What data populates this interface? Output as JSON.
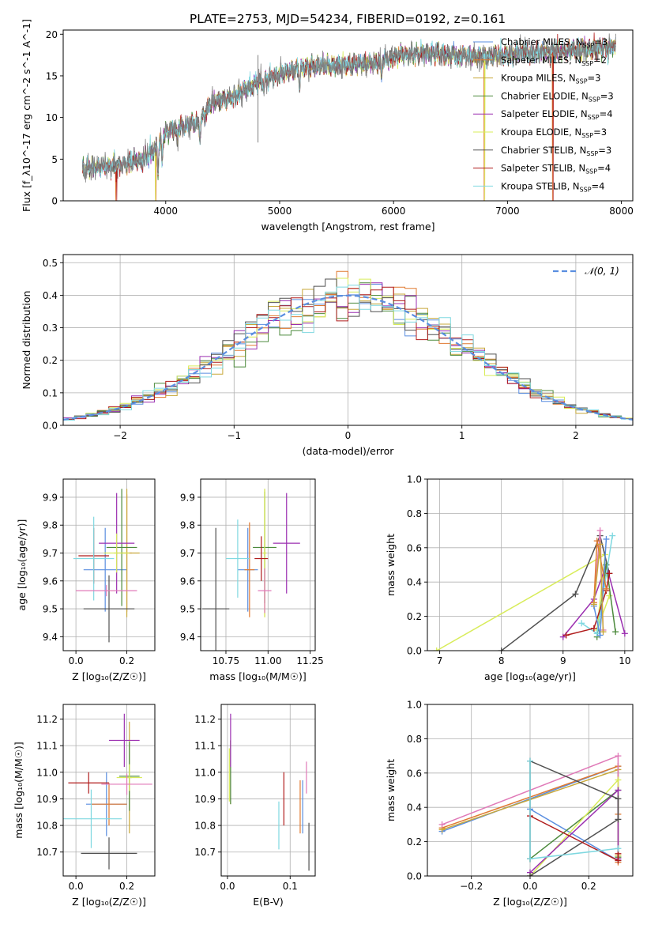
{
  "figure": {
    "title": "PLATE=2753, MJD=54234, FIBERID=0192, z=0.161"
  },
  "colors": {
    "chabrier_miles": "#5a8ee0",
    "salpeter_miles": "#e07a30",
    "kroupa_miles": "#c8a83a",
    "chabrier_elodie": "#4c8a3c",
    "salpeter_elodie": "#9b2fb0",
    "kroupa_elodie": "#d8ec5a",
    "chabrier_stelib": "#505050",
    "salpeter_stelib": "#b01c1c",
    "kroupa_stelib": "#7fd8e0",
    "pink": "#e07ab8",
    "gaussian": "#5a8ee0",
    "data": "#808080"
  },
  "legend": {
    "items": [
      {
        "label": "Chabrier MILES, N",
        "sub": "SSP",
        "suffix": "=3",
        "color": "#5a8ee0"
      },
      {
        "label": "Salpeter MILES, N",
        "sub": "SSP",
        "suffix": "=2",
        "color": "#e07a30"
      },
      {
        "label": "Kroupa MILES, N",
        "sub": "SSP",
        "suffix": "=3",
        "color": "#c8a83a"
      },
      {
        "label": "Chabrier ELODIE, N",
        "sub": "SSP",
        "suffix": "=3",
        "color": "#4c8a3c"
      },
      {
        "label": "Salpeter ELODIE, N",
        "sub": "SSP",
        "suffix": "=4",
        "color": "#9b2fb0"
      },
      {
        "label": "Kroupa ELODIE, N",
        "sub": "SSP",
        "suffix": "=3",
        "color": "#d8ec5a"
      },
      {
        "label": "Chabrier STELIB, N",
        "sub": "SSP",
        "suffix": "=3",
        "color": "#505050"
      },
      {
        "label": "Salpeter STELIB, N",
        "sub": "SSP",
        "suffix": "=4",
        "color": "#b01c1c"
      },
      {
        "label": "Kroupa STELIB, N",
        "sub": "SSP",
        "suffix": "=4",
        "color": "#7fd8e0"
      }
    ]
  },
  "chart_data": [
    {
      "id": "spectrum",
      "type": "line",
      "xlabel": "wavelength [Angstrom, rest frame]",
      "ylabel": "Flux [f_λ10^-17 erg cm^-2 s^-1 A^-1]",
      "xlim": [
        3100,
        8100
      ],
      "ylim": [
        0,
        20.5
      ],
      "xticks": [
        4000,
        5000,
        6000,
        7000,
        8000
      ],
      "yticks": [
        0,
        5,
        10,
        15,
        20
      ],
      "x_start": 3270,
      "x_end": 7950,
      "knots": [
        [
          3270,
          3.8
        ],
        [
          3400,
          4.0
        ],
        [
          3600,
          4.3
        ],
        [
          3800,
          5.0
        ],
        [
          3900,
          6.2
        ],
        [
          4000,
          8.2
        ],
        [
          4100,
          8.8
        ],
        [
          4300,
          9.5
        ],
        [
          4400,
          11.8
        ],
        [
          4600,
          12.5
        ],
        [
          4800,
          14.2
        ],
        [
          5000,
          15.3
        ],
        [
          5200,
          16.0
        ],
        [
          5400,
          16.2
        ],
        [
          5600,
          16.3
        ],
        [
          5850,
          16.6
        ],
        [
          6050,
          17.5
        ],
        [
          6300,
          17.8
        ],
        [
          6500,
          17.6
        ],
        [
          6800,
          17.3
        ],
        [
          7000,
          17.6
        ],
        [
          7200,
          17.8
        ],
        [
          7500,
          18.0
        ],
        [
          7800,
          18.3
        ],
        [
          7950,
          18.5
        ]
      ],
      "absorption": [
        [
          3933,
          3.0
        ],
        [
          3968,
          2.5
        ],
        [
          4101,
          1.5
        ],
        [
          4300,
          1.8
        ],
        [
          4861,
          1.2
        ],
        [
          5175,
          2.0
        ],
        [
          5893,
          1.5
        ],
        [
          6563,
          1.0
        ]
      ],
      "model_drops": [
        [
          3560,
          "#e07a30"
        ],
        [
          3570,
          "#b01c1c"
        ],
        [
          3910,
          "#d8ec5a"
        ],
        [
          3915,
          "#e07a30"
        ],
        [
          6795,
          "#e07a30"
        ],
        [
          6800,
          "#d8ec5a"
        ],
        [
          7395,
          "#e07a30"
        ],
        [
          7400,
          "#b01c1c"
        ]
      ],
      "spike": [
        4810,
        7.0,
        17.5
      ]
    },
    {
      "id": "residuals",
      "type": "step",
      "xlabel": "(data-model)/error",
      "ylabel": "Normed distribution",
      "xlim": [
        -2.5,
        2.5
      ],
      "ylim": [
        0,
        0.525
      ],
      "xticks": [
        -2,
        -1,
        0,
        1,
        2
      ],
      "yticks": [
        0,
        0.1,
        0.2,
        0.3,
        0.4,
        0.5
      ],
      "bin_width": 0.1,
      "series_colors": [
        "#5a8ee0",
        "#e07a30",
        "#c8a83a",
        "#4c8a3c",
        "#9b2fb0",
        "#d8ec5a",
        "#505050",
        "#b01c1c",
        "#7fd8e0"
      ],
      "gaussian_label": "𝒩(0, 1)"
    },
    {
      "id": "age_vs_Z",
      "type": "scatter",
      "xlabel": "Z [log₁₀(Z/Z☉)]",
      "ylabel": "age  [log₁₀(age/yr)]",
      "xlim": [
        -0.05,
        0.31
      ],
      "ylim": [
        9.35,
        9.965
      ],
      "xticks": [
        0.0,
        0.2
      ],
      "yticks": [
        9.4,
        9.5,
        9.6,
        9.7,
        9.8,
        9.9
      ],
      "points": [
        {
          "x": 0.115,
          "y": 9.64,
          "ex": 0.085,
          "ey": 0.15,
          "color": "#5a8ee0"
        },
        {
          "x": 0.2,
          "y": 9.7,
          "ex": 0.02,
          "ey": 0.21,
          "color": "#e07a30"
        },
        {
          "x": 0.2,
          "y": 9.7,
          "ex": 0.05,
          "ey": 0.23,
          "color": "#c8a83a"
        },
        {
          "x": 0.18,
          "y": 9.72,
          "ex": 0.06,
          "ey": 0.21,
          "color": "#4c8a3c"
        },
        {
          "x": 0.16,
          "y": 9.735,
          "ex": 0.07,
          "ey": 0.18,
          "color": "#9b2fb0"
        },
        {
          "x": 0.16,
          "y": 9.7,
          "ex": 0.05,
          "ey": 0.07,
          "color": "#d8ec5a"
        },
        {
          "x": 0.13,
          "y": 9.5,
          "ex": 0.1,
          "ey": 0.12,
          "color": "#505050"
        },
        {
          "x": 0.07,
          "y": 9.69,
          "ex": 0.06,
          "ey": 0.1,
          "color": "#b01c1c"
        },
        {
          "x": 0.07,
          "y": 9.68,
          "ex": 0.08,
          "ey": 0.15,
          "color": "#7fd8e0"
        },
        {
          "x": 0.12,
          "y": 9.565,
          "ex": 0.12,
          "ey": 0.02,
          "color": "#e07ab8"
        }
      ]
    },
    {
      "id": "age_vs_mass",
      "type": "scatter",
      "xlabel": "mass [log₁₀(M/M☉)]",
      "ylabel": "",
      "xlim": [
        10.6,
        11.28
      ],
      "ylim": [
        9.35,
        9.965
      ],
      "xticks": [
        10.75,
        11.0,
        11.25
      ],
      "yticks": [
        9.4,
        9.5,
        9.6,
        9.7,
        9.8,
        9.9
      ],
      "points": [
        {
          "x": 10.88,
          "y": 9.64,
          "ex": 0.06,
          "ey": 0.15,
          "color": "#5a8ee0"
        },
        {
          "x": 10.89,
          "y": 9.64,
          "ex": 0.03,
          "ey": 0.17,
          "color": "#e07a30"
        },
        {
          "x": 10.98,
          "y": 9.7,
          "ex": 0.01,
          "ey": 0.23,
          "color": "#c8a83a"
        },
        {
          "x": 10.98,
          "y": 9.72,
          "ex": 0.07,
          "ey": 0.2,
          "color": "#4c8a3c"
        },
        {
          "x": 11.11,
          "y": 9.735,
          "ex": 0.08,
          "ey": 0.18,
          "color": "#9b2fb0"
        },
        {
          "x": 10.98,
          "y": 9.7,
          "ex": 0.01,
          "ey": 0.23,
          "color": "#d8ec5a"
        },
        {
          "x": 10.69,
          "y": 9.5,
          "ex": 0.08,
          "ey": 0.29,
          "color": "#505050"
        },
        {
          "x": 10.96,
          "y": 9.68,
          "ex": 0.04,
          "ey": 0.08,
          "color": "#b01c1c"
        },
        {
          "x": 10.82,
          "y": 9.68,
          "ex": 0.07,
          "ey": 0.14,
          "color": "#7fd8e0"
        },
        {
          "x": 10.98,
          "y": 9.565,
          "ex": 0.04,
          "ey": 0.08,
          "color": "#e07ab8"
        }
      ]
    },
    {
      "id": "mass_weight_vs_age",
      "type": "line",
      "xlabel": "age  [log₁₀(age/yr)]",
      "ylabel": "mass weight",
      "xlim": [
        6.8,
        10.13
      ],
      "ylim": [
        0,
        1.0
      ],
      "xticks": [
        7,
        8,
        9,
        10
      ],
      "yticks": [
        0.0,
        0.2,
        0.4,
        0.6,
        0.8,
        1.0
      ],
      "series": [
        {
          "color": "#d8ec5a",
          "points": [
            [
              6.95,
              0.0
            ],
            [
              9.68,
              0.56
            ],
            [
              9.55,
              0.12
            ],
            [
              9.75,
              0.32
            ]
          ]
        },
        {
          "color": "#505050",
          "points": [
            [
              8.0,
              0.0
            ],
            [
              9.2,
              0.33
            ],
            [
              9.6,
              0.67
            ],
            [
              9.75,
              0.45
            ]
          ]
        },
        {
          "color": "#9b2fb0",
          "points": [
            [
              9.0,
              0.08
            ],
            [
              9.5,
              0.3
            ],
            [
              9.7,
              0.5
            ],
            [
              10.0,
              0.1
            ]
          ]
        },
        {
          "color": "#4c8a3c",
          "points": [
            [
              9.55,
              0.08
            ],
            [
              9.7,
              0.5
            ],
            [
              9.85,
              0.11
            ]
          ]
        },
        {
          "color": "#7fd8e0",
          "points": [
            [
              9.3,
              0.16
            ],
            [
              9.55,
              0.1
            ],
            [
              9.8,
              0.67
            ]
          ]
        },
        {
          "color": "#e07ab8",
          "points": [
            [
              9.5,
              0.28
            ],
            [
              9.6,
              0.7
            ],
            [
              9.65,
              0.12
            ]
          ]
        },
        {
          "color": "#b01c1c",
          "points": [
            [
              9.05,
              0.09
            ],
            [
              9.5,
              0.13
            ],
            [
              9.7,
              0.35
            ],
            [
              9.75,
              0.45
            ]
          ]
        },
        {
          "color": "#5a8ee0",
          "points": [
            [
              9.5,
              0.26
            ],
            [
              9.6,
              0.09
            ],
            [
              9.7,
              0.65
            ]
          ]
        },
        {
          "color": "#e07a30",
          "points": [
            [
              9.5,
              0.28
            ],
            [
              9.55,
              0.64
            ],
            [
              9.7,
              0.36
            ]
          ]
        },
        {
          "color": "#c8a83a",
          "points": [
            [
              9.5,
              0.27
            ],
            [
              9.6,
              0.62
            ],
            [
              9.65,
              0.11
            ]
          ]
        }
      ]
    },
    {
      "id": "mass_vs_Z",
      "type": "scatter",
      "xlabel": "Z [log₁₀(Z/Z☉)]",
      "ylabel": "mass [log₁₀(M/M☉)]",
      "xlim": [
        -0.05,
        0.31
      ],
      "ylim": [
        10.61,
        11.255
      ],
      "xticks": [
        0.0,
        0.2
      ],
      "yticks": [
        10.7,
        10.8,
        10.9,
        11.0,
        11.1,
        11.2
      ],
      "points": [
        {
          "x": 0.12,
          "y": 10.88,
          "ex": 0.08,
          "ey": 0.12,
          "color": "#5a8ee0"
        },
        {
          "x": 0.13,
          "y": 10.88,
          "ex": 0.07,
          "ey": 0.08,
          "color": "#e07a30"
        },
        {
          "x": 0.21,
          "y": 10.98,
          "ex": 0.01,
          "ey": 0.21,
          "color": "#c8a83a"
        },
        {
          "x": 0.21,
          "y": 10.985,
          "ex": 0.04,
          "ey": 0.13,
          "color": "#4c8a3c"
        },
        {
          "x": 0.19,
          "y": 11.12,
          "ex": 0.06,
          "ey": 0.1,
          "color": "#9b2fb0"
        },
        {
          "x": 0.21,
          "y": 10.98,
          "ex": 0.05,
          "ey": 0.05,
          "color": "#d8ec5a"
        },
        {
          "x": 0.13,
          "y": 10.695,
          "ex": 0.11,
          "ey": 0.06,
          "color": "#505050"
        },
        {
          "x": 0.05,
          "y": 10.96,
          "ex": 0.08,
          "ey": 0.04,
          "color": "#b01c1c"
        },
        {
          "x": 0.06,
          "y": 10.825,
          "ex": 0.12,
          "ey": 0.11,
          "color": "#7fd8e0"
        },
        {
          "x": 0.2,
          "y": 10.955,
          "ex": 0.1,
          "ey": 0.04,
          "color": "#e07ab8"
        }
      ]
    },
    {
      "id": "mass_vs_ebv",
      "type": "scatter",
      "xlabel": "E(B-V)",
      "ylabel": "",
      "xlim": [
        -0.01,
        0.14
      ],
      "ylim": [
        10.61,
        11.255
      ],
      "xticks": [
        0.0,
        0.1
      ],
      "yticks": [
        10.7,
        10.8,
        10.9,
        11.0,
        11.1,
        11.2
      ],
      "points": [
        {
          "x": 0.12,
          "y": 10.87,
          "ex": 0.0,
          "ey": 0.1,
          "color": "#5a8ee0"
        },
        {
          "x": 0.116,
          "y": 10.87,
          "ex": 0.0,
          "ey": 0.1,
          "color": "#e07a30"
        },
        {
          "x": 0.005,
          "y": 11.0,
          "ex": 0.0,
          "ey": 0.12,
          "color": "#c8a83a"
        },
        {
          "x": 0.005,
          "y": 11.0,
          "ex": 0.0,
          "ey": 0.12,
          "color": "#4c8a3c"
        },
        {
          "x": 0.005,
          "y": 11.12,
          "ex": 0.0,
          "ey": 0.1,
          "color": "#9b2fb0"
        },
        {
          "x": 0.003,
          "y": 10.99,
          "ex": 0.0,
          "ey": 0.1,
          "color": "#d8ec5a"
        },
        {
          "x": 0.13,
          "y": 10.72,
          "ex": 0.0,
          "ey": 0.09,
          "color": "#505050"
        },
        {
          "x": 0.09,
          "y": 10.9,
          "ex": 0.0,
          "ey": 0.1,
          "color": "#b01c1c"
        },
        {
          "x": 0.082,
          "y": 10.8,
          "ex": 0.0,
          "ey": 0.09,
          "color": "#7fd8e0"
        },
        {
          "x": 0.126,
          "y": 10.98,
          "ex": 0.0,
          "ey": 0.06,
          "color": "#e07ab8"
        }
      ]
    },
    {
      "id": "mass_weight_vs_Z",
      "type": "line",
      "xlabel": "Z [log₁₀(Z/Z☉)]",
      "ylabel": "mass weight",
      "xlim": [
        -0.35,
        0.35
      ],
      "ylim": [
        0,
        1.0
      ],
      "xticks": [
        -0.2,
        0.0,
        0.2
      ],
      "yticks": [
        0.0,
        0.2,
        0.4,
        0.6,
        0.8,
        1.0
      ],
      "series": [
        {
          "color": "#5a8ee0",
          "points": [
            [
              -0.3,
              0.26
            ],
            [
              0.3,
              0.64
            ],
            [
              0.3,
              0.09
            ],
            [
              0.0,
              0.39
            ]
          ]
        },
        {
          "color": "#e07a30",
          "points": [
            [
              -0.3,
              0.28
            ],
            [
              0.3,
              0.64
            ],
            [
              0.3,
              0.36
            ],
            [
              0.3,
              0.08
            ]
          ]
        },
        {
          "color": "#c8a83a",
          "points": [
            [
              -0.3,
              0.27
            ],
            [
              0.3,
              0.62
            ],
            [
              0.3,
              0.11
            ]
          ]
        },
        {
          "color": "#e07ab8",
          "points": [
            [
              -0.3,
              0.3
            ],
            [
              0.3,
              0.7
            ],
            [
              0.3,
              0.12
            ]
          ]
        },
        {
          "color": "#4c8a3c",
          "points": [
            [
              0.0,
              0.1
            ],
            [
              0.3,
              0.5
            ],
            [
              0.3,
              0.11
            ]
          ]
        },
        {
          "color": "#d8ec5a",
          "points": [
            [
              0.0,
              0.0
            ],
            [
              0.3,
              0.56
            ],
            [
              0.3,
              0.12
            ]
          ]
        },
        {
          "color": "#9b2fb0",
          "points": [
            [
              0.0,
              0.02
            ],
            [
              0.3,
              0.5
            ],
            [
              0.3,
              0.1
            ]
          ]
        },
        {
          "color": "#505050",
          "points": [
            [
              0.0,
              0.0
            ],
            [
              0.3,
              0.33
            ],
            [
              0.3,
              0.45
            ],
            [
              0.0,
              0.67
            ],
            [
              0.0,
              0.1
            ]
          ]
        },
        {
          "color": "#b01c1c",
          "points": [
            [
              0.0,
              0.35
            ],
            [
              0.3,
              0.09
            ],
            [
              0.3,
              0.13
            ]
          ]
        },
        {
          "color": "#7fd8e0",
          "points": [
            [
              0.0,
              0.67
            ],
            [
              0.0,
              0.1
            ],
            [
              0.3,
              0.16
            ]
          ]
        }
      ]
    }
  ]
}
